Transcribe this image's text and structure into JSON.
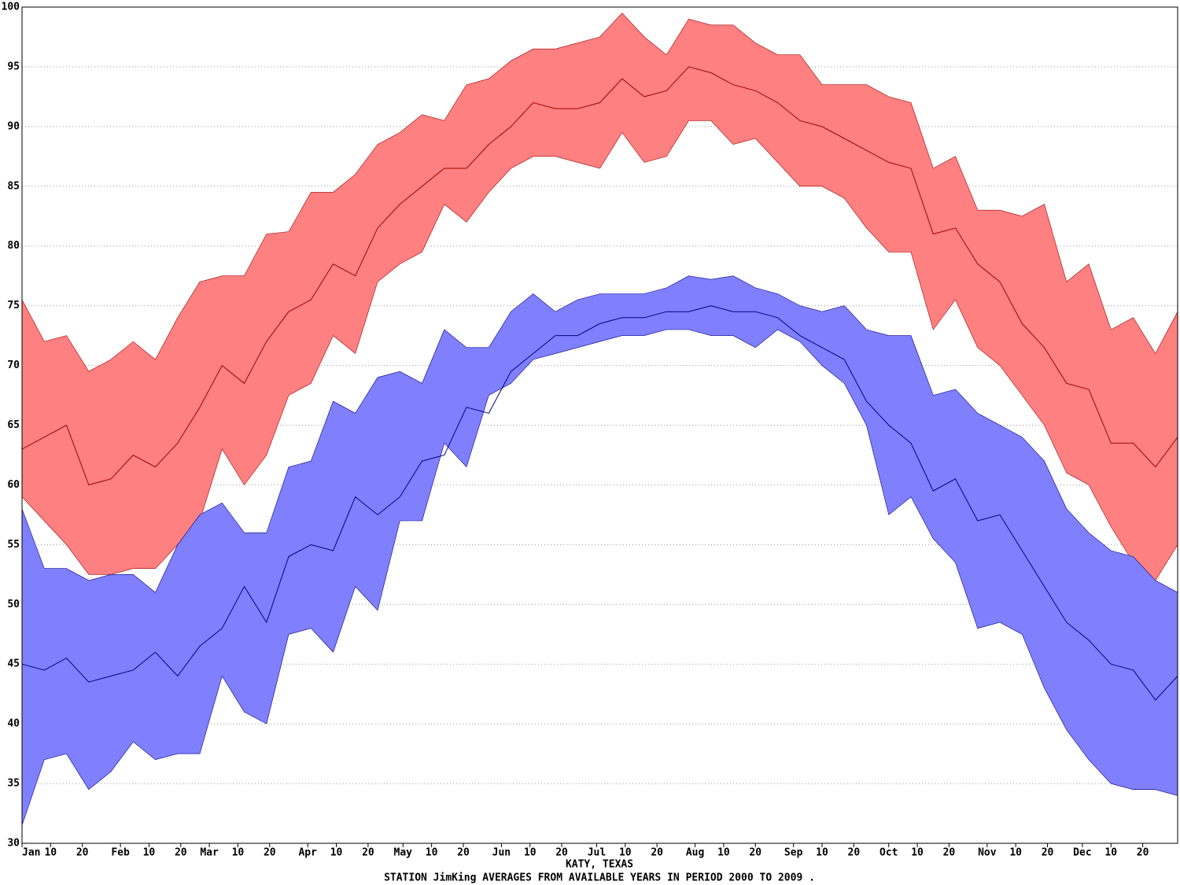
{
  "chart_data": {
    "type": "band",
    "title": "KATY, TEXAS",
    "subtitle": "STATION JimKing AVERAGES FROM AVAILABLE YEARS IN PERIOD 2000 TO 2009 .",
    "x": [
      1,
      8,
      15,
      22,
      29,
      36,
      43,
      50,
      57,
      64,
      71,
      78,
      85,
      92,
      99,
      106,
      113,
      120,
      127,
      134,
      141,
      148,
      155,
      162,
      169,
      176,
      183,
      190,
      197,
      204,
      211,
      218,
      225,
      232,
      239,
      246,
      253,
      260,
      267,
      274,
      281,
      288,
      295,
      302,
      309,
      316,
      323,
      330,
      337,
      344,
      351,
      358,
      365
    ],
    "bands": [
      {
        "color": "#ff8080",
        "line_color": "#a00000",
        "upper": [
          75.5,
          72,
          72.5,
          69.5,
          70.5,
          72,
          70.5,
          74,
          77,
          77.5,
          77.5,
          81,
          81.2,
          84.5,
          84.5,
          86,
          88.5,
          89.5,
          91,
          90.5,
          93.5,
          94,
          95.5,
          96.5,
          96.5,
          97,
          97.5,
          99.5,
          97.5,
          96,
          99,
          98.5,
          98.5,
          97,
          96,
          96,
          93.5,
          93.5,
          93.5,
          92.5,
          92,
          86.5,
          87.5,
          83,
          83,
          82.5,
          83.5,
          77,
          78.5,
          73,
          74,
          71,
          74.5
        ],
        "mean": [
          63,
          64,
          65,
          60,
          60.5,
          62.5,
          61.5,
          63.5,
          66.5,
          70,
          68.5,
          72,
          74.5,
          75.5,
          78.5,
          77.5,
          81.5,
          83.5,
          85,
          86.5,
          86.5,
          88.5,
          90,
          92,
          91.5,
          91.5,
          92,
          94,
          92.5,
          93,
          95,
          94.5,
          93.5,
          93,
          92,
          90.5,
          90,
          89,
          88,
          87,
          86.5,
          81,
          81.5,
          78.5,
          77,
          73.5,
          71.5,
          68.5,
          68,
          63.5,
          63.5,
          61.5,
          64
        ],
        "lower": [
          59,
          57,
          55,
          52.5,
          52.5,
          53,
          53,
          55,
          57,
          63,
          60,
          62.5,
          67.5,
          68.5,
          72.5,
          71,
          77,
          78.5,
          79.5,
          83.5,
          82,
          84.5,
          86.5,
          87.5,
          87.5,
          87,
          86.5,
          89.5,
          87,
          87.5,
          90.5,
          90.5,
          88.5,
          89,
          87,
          85,
          85,
          84,
          81.5,
          79.5,
          79.5,
          73,
          75.5,
          71.5,
          70,
          67.5,
          65,
          61,
          60,
          56.5,
          53.5,
          52,
          55
        ]
      },
      {
        "color": "#8080ff",
        "line_color": "#000080",
        "upper": [
          58,
          53,
          53,
          52,
          52.5,
          52.5,
          51,
          55,
          57.5,
          58.5,
          56,
          56,
          61.5,
          62,
          67,
          66,
          69,
          69.5,
          68.5,
          73,
          71.5,
          71.5,
          74.5,
          76,
          74.5,
          75.5,
          76,
          76,
          76,
          76.5,
          77.5,
          77.2,
          77.5,
          76.5,
          76,
          75,
          74.5,
          75,
          73,
          72.5,
          72.5,
          67.5,
          68,
          66,
          65,
          64,
          62,
          58,
          56,
          54.5,
          54,
          52,
          51
        ],
        "mean": [
          45,
          44.5,
          45.5,
          43.5,
          44,
          44.5,
          46,
          44,
          46.5,
          48,
          51.5,
          48.5,
          54,
          55,
          54.5,
          59,
          57.5,
          59,
          62,
          62.5,
          66.5,
          66,
          69.5,
          71,
          72.5,
          72.5,
          73.5,
          74,
          74,
          74.5,
          74.5,
          75,
          74.5,
          74.5,
          74,
          72.5,
          71.5,
          70.5,
          67,
          65,
          63.5,
          59.5,
          60.5,
          57,
          57.5,
          54.5,
          51.5,
          48.5,
          47,
          45,
          44.5,
          42,
          44
        ],
        "lower": [
          31.5,
          37,
          37.5,
          34.5,
          36,
          38.5,
          37,
          37.5,
          37.5,
          44,
          41,
          40,
          47.5,
          48,
          46,
          51.5,
          49.5,
          57,
          57,
          63.5,
          61.5,
          67.5,
          68.5,
          70.5,
          71,
          71.5,
          72,
          72.5,
          72.5,
          73,
          73,
          72.5,
          72.5,
          71.5,
          73,
          72,
          70,
          68.5,
          65,
          57.5,
          59,
          55.5,
          53.5,
          48,
          48.5,
          47.5,
          43,
          39.5,
          37,
          35,
          34.5,
          34.5,
          34
        ]
      }
    ],
    "xlim": [
      1,
      365
    ],
    "xticks": [
      {
        "value": 1,
        "label": "Jan"
      },
      10,
      20,
      {
        "value": 32,
        "label": "Feb"
      },
      {
        "value": 41,
        "label": "10"
      },
      {
        "value": 51,
        "label": "20"
      },
      {
        "value": 60,
        "label": "Mar"
      },
      {
        "value": 69,
        "label": "10"
      },
      {
        "value": 79,
        "label": "20"
      },
      {
        "value": 91,
        "label": "Apr"
      },
      {
        "value": 100,
        "label": "10"
      },
      {
        "value": 110,
        "label": "20"
      },
      {
        "value": 121,
        "label": "May"
      },
      {
        "value": 130,
        "label": "10"
      },
      {
        "value": 140,
        "label": "20"
      },
      {
        "value": 152,
        "label": "Jun"
      },
      {
        "value": 161,
        "label": "10"
      },
      {
        "value": 171,
        "label": "20"
      },
      {
        "value": 182,
        "label": "Jul"
      },
      {
        "value": 191,
        "label": "10"
      },
      {
        "value": 201,
        "label": "20"
      },
      {
        "value": 213,
        "label": "Aug"
      },
      {
        "value": 222,
        "label": "10"
      },
      {
        "value": 232,
        "label": "20"
      },
      {
        "value": 244,
        "label": "Sep"
      },
      {
        "value": 253,
        "label": "10"
      },
      {
        "value": 263,
        "label": "20"
      },
      {
        "value": 274,
        "label": "Oct"
      },
      {
        "value": 283,
        "label": "10"
      },
      {
        "value": 293,
        "label": "20"
      },
      {
        "value": 305,
        "label": "Nov"
      },
      {
        "value": 314,
        "label": "10"
      },
      {
        "value": 324,
        "label": "20"
      },
      {
        "value": 335,
        "label": "Dec"
      },
      {
        "value": 344,
        "label": "10"
      },
      {
        "value": 354,
        "label": "20"
      }
    ],
    "ylim": [
      30,
      100
    ],
    "yticks": [
      30,
      35,
      40,
      45,
      50,
      55,
      60,
      65,
      70,
      75,
      80,
      85,
      90,
      95,
      100
    ],
    "grid": true
  }
}
